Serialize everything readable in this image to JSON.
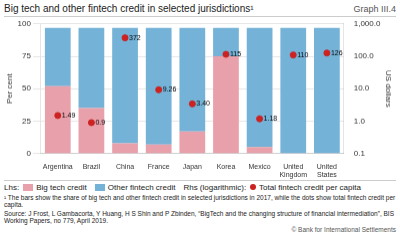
{
  "chart_data": {
    "type": "bar",
    "title": "Big tech and other fintech credit in selected jurisdictions¹",
    "categories": [
      "Argentina",
      "Brazil",
      "China",
      "France",
      "Japan",
      "Korea",
      "Mexico",
      "United\nKingdom",
      "United\nStates"
    ],
    "series": [
      {
        "name": "Big tech credit",
        "type": "bar",
        "color": "#e8a0aa",
        "values": [
          52,
          35,
          8,
          7,
          17,
          75,
          5,
          0,
          0
        ]
      },
      {
        "name": "Other fintech credit",
        "type": "bar",
        "color": "#74b2d7",
        "values": [
          45,
          62,
          89,
          90,
          80,
          22,
          92,
          97,
          97
        ]
      },
      {
        "name": "Total fintech credit per capita",
        "type": "scatter",
        "axis": "y2",
        "marker": "circle",
        "color": "#cc2222",
        "values": [
          1.49,
          0.9,
          372,
          9.26,
          3.4,
          115,
          1.18,
          110,
          126
        ],
        "value_labels": [
          "1.49",
          "0.9",
          "372",
          "9.26",
          "3.40",
          "115",
          "1.18",
          "110",
          "126"
        ]
      }
    ],
    "stacked": true,
    "data_labels": true,
    "y_label": "Per cent",
    "y2_label": "US dollars",
    "ylim": [
      0,
      100
    ],
    "yticks": [
      0,
      25,
      50,
      75,
      100
    ],
    "y2lim": [
      0.1,
      1000
    ],
    "y2ticks": [
      {
        "value": 0.1,
        "label": "0.1"
      },
      {
        "value": 1,
        "label": "1.0"
      },
      {
        "value": 10,
        "label": "10.0"
      },
      {
        "value": 100,
        "label": "100.0"
      },
      {
        "value": 1000,
        "label": "1,000.0"
      }
    ],
    "log": "y2",
    "grid": true,
    "legend": "bottom",
    "annotations": {
      "graph_label": "Graph III.4",
      "legend_group_y": "Lhs:",
      "legend_group_y2": "Rhs (logarithmic):",
      "footnotes": [
        "¹ The bars show the share of big tech and other fintech credit in selected jurisdictions in 2017, while the dots show total fintech credit per capita.",
        "Source: J Frost, L Gambacorta, Y Huang, H S Shin and P Zbinden, “BigTech and the changing structure of financial intermediation”, BIS Working Papers, no 779, April 2019."
      ],
      "copyright": "© Bank for International Settlements"
    }
  }
}
